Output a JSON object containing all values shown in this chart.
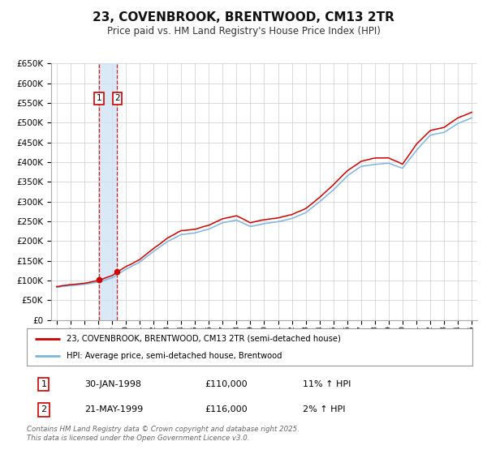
{
  "title": "23, COVENBROOK, BRENTWOOD, CM13 2TR",
  "subtitle": "Price paid vs. HM Land Registry's House Price Index (HPI)",
  "legend_line1": "23, COVENBROOK, BRENTWOOD, CM13 2TR (semi-detached house)",
  "legend_line2": "HPI: Average price, semi-detached house, Brentwood",
  "footer": "Contains HM Land Registry data © Crown copyright and database right 2025.\nThis data is licensed under the Open Government Licence v3.0.",
  "sale1_date": "30-JAN-1998",
  "sale1_price": "£110,000",
  "sale1_hpi": "11% ↑ HPI",
  "sale1_year": 1998.08,
  "sale2_date": "21-MAY-1999",
  "sale2_price": "£116,000",
  "sale2_hpi": "2% ↑ HPI",
  "sale2_year": 1999.38,
  "hpi_line_color": "#7eb4e0",
  "price_line_color": "#cc0000",
  "vline_color": "#cc0000",
  "shade_color": "#cce0f5",
  "background_color": "#ffffff",
  "grid_color": "#cccccc",
  "ylim_min": 0,
  "ylim_max": 650000,
  "anchor_years": [
    1995.0,
    1996.0,
    1997.0,
    1998.0,
    1999.0,
    2000.0,
    2001.0,
    2002.0,
    2003.0,
    2004.0,
    2005.0,
    2006.0,
    2007.0,
    2008.0,
    2009.0,
    2010.0,
    2011.0,
    2012.0,
    2013.0,
    2014.0,
    2015.0,
    2016.0,
    2017.0,
    2018.0,
    2019.0,
    2020.0,
    2021.0,
    2022.0,
    2023.0,
    2024.0,
    2025.2
  ],
  "hpi_anchor_vals": [
    83000,
    87000,
    91000,
    97000,
    108000,
    130000,
    148000,
    175000,
    200000,
    218000,
    222000,
    232000,
    248000,
    255000,
    238000,
    245000,
    250000,
    258000,
    272000,
    300000,
    330000,
    365000,
    390000,
    395000,
    398000,
    385000,
    430000,
    468000,
    475000,
    498000,
    515000
  ],
  "price_anchor_vals": [
    85000,
    89000,
    93000,
    100000,
    112000,
    135000,
    153000,
    180000,
    206000,
    224000,
    228000,
    238000,
    255000,
    262000,
    244000,
    252000,
    257000,
    265000,
    280000,
    308000,
    340000,
    375000,
    400000,
    408000,
    410000,
    395000,
    445000,
    480000,
    488000,
    512000,
    530000
  ]
}
